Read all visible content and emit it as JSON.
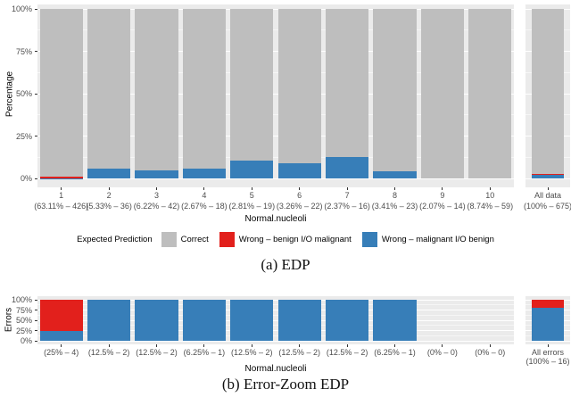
{
  "colors": {
    "correct": "#BEBEBE",
    "wrong_red": "#E2201C",
    "wrong_blue": "#377EB8",
    "panel_bg": "#EBEBEB",
    "tick_text": "#4D4D4D"
  },
  "legend": {
    "title": "Expected Prediction",
    "items": [
      {
        "label": "Correct",
        "color_key": "correct"
      },
      {
        "label": "Wrong – benign I/O malignant",
        "color_key": "wrong_red"
      },
      {
        "label": "Wrong – malignant I/O benign",
        "color_key": "wrong_blue"
      }
    ]
  },
  "captions": {
    "a": "(a) EDP",
    "b": "(b) Error-Zoom EDP"
  },
  "chart_data": [
    {
      "id": "edp",
      "type": "bar",
      "stacking": "percent",
      "ylabel": "Percentage",
      "xlabel": "Normal.nucleoli",
      "ylim": [
        0,
        100
      ],
      "yticks": [
        "0%",
        "25%",
        "50%",
        "75%",
        "100%"
      ],
      "grid": "major-and-minor",
      "legend_position": "bottom",
      "series_names": [
        "Correct",
        "Wrong – benign I/O malignant",
        "Wrong – malignant I/O benign"
      ],
      "categories": [
        {
          "tick": "1",
          "sublabel": "(63.11% – 426)",
          "correct": 99.07,
          "red": 0.7,
          "blue": 0.23
        },
        {
          "tick": "2",
          "sublabel": "(5.33% – 36)",
          "correct": 94.44,
          "red": 0,
          "blue": 5.56
        },
        {
          "tick": "3",
          "sublabel": "(6.22% – 42)",
          "correct": 95.24,
          "red": 0,
          "blue": 4.76
        },
        {
          "tick": "4",
          "sublabel": "(2.67% – 18)",
          "correct": 94.44,
          "red": 0,
          "blue": 5.56
        },
        {
          "tick": "5",
          "sublabel": "(2.81% – 19)",
          "correct": 89.47,
          "red": 0,
          "blue": 10.53
        },
        {
          "tick": "6",
          "sublabel": "(3.26% – 22)",
          "correct": 90.91,
          "red": 0,
          "blue": 9.09
        },
        {
          "tick": "7",
          "sublabel": "(2.37% – 16)",
          "correct": 87.5,
          "red": 0,
          "blue": 12.5
        },
        {
          "tick": "8",
          "sublabel": "(3.41% – 23)",
          "correct": 95.65,
          "red": 0,
          "blue": 4.35
        },
        {
          "tick": "9",
          "sublabel": "(2.07% – 14)",
          "correct": 100,
          "red": 0,
          "blue": 0
        },
        {
          "tick": "10",
          "sublabel": "(8.74% – 59)",
          "correct": 100,
          "red": 0,
          "blue": 0
        }
      ],
      "all_bar": {
        "tick": "All data",
        "sublabel": "(100% – 675)",
        "correct": 97.63,
        "red": 0.44,
        "blue": 1.93
      }
    },
    {
      "id": "error_zoom_edp",
      "type": "bar",
      "stacking": "percent",
      "ylabel": "Errors",
      "xlabel": "Normal.nucleoli",
      "ylim": [
        0,
        100
      ],
      "yticks": [
        "0%",
        "25%",
        "50%",
        "75%",
        "100%"
      ],
      "grid": "major-and-minor",
      "series_names": [
        "Wrong – benign I/O malignant",
        "Wrong – malignant I/O benign"
      ],
      "categories": [
        {
          "tick": "",
          "sublabel": "(25% – 4)",
          "correct": 0,
          "red": 75,
          "blue": 25
        },
        {
          "tick": "",
          "sublabel": "(12.5% – 2)",
          "correct": 0,
          "red": 0,
          "blue": 100
        },
        {
          "tick": "",
          "sublabel": "(12.5% – 2)",
          "correct": 0,
          "red": 0,
          "blue": 100
        },
        {
          "tick": "",
          "sublabel": "(6.25% – 1)",
          "correct": 0,
          "red": 0,
          "blue": 100
        },
        {
          "tick": "",
          "sublabel": "(12.5% – 2)",
          "correct": 0,
          "red": 0,
          "blue": 100
        },
        {
          "tick": "",
          "sublabel": "(12.5% – 2)",
          "correct": 0,
          "red": 0,
          "blue": 100
        },
        {
          "tick": "",
          "sublabel": "(12.5% – 2)",
          "correct": 0,
          "red": 0,
          "blue": 100
        },
        {
          "tick": "",
          "sublabel": "(6.25% – 1)",
          "correct": 0,
          "red": 0,
          "blue": 100
        },
        {
          "tick": "",
          "sublabel": "(0% – 0)",
          "correct": 0,
          "red": 0,
          "blue": 0
        },
        {
          "tick": "",
          "sublabel": "(0% – 0)",
          "correct": 0,
          "red": 0,
          "blue": 0
        }
      ],
      "all_bar": {
        "tick": "All errors",
        "sublabel": "(100% – 16)",
        "correct": 0,
        "red": 18.75,
        "blue": 81.25
      }
    }
  ]
}
